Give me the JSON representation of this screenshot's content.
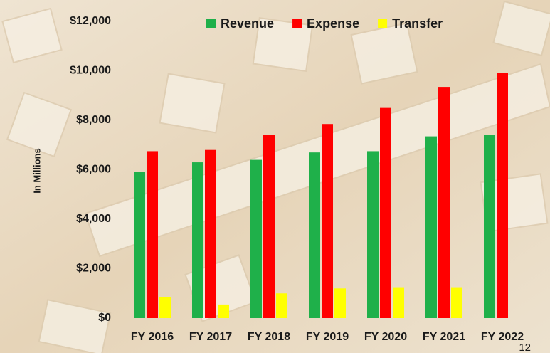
{
  "chart_data": {
    "type": "bar",
    "y_label": "In Millions",
    "categories": [
      "FY 2016",
      "FY 2017",
      "FY 2018",
      "FY 2019",
      "FY 2020",
      "FY 2021",
      "FY 2022"
    ],
    "series": [
      {
        "name": "Revenue",
        "color": "#1fb04a",
        "values": [
          5900,
          6300,
          6400,
          6700,
          6750,
          7350,
          7400
        ]
      },
      {
        "name": "Expense",
        "color": "#ff0000",
        "values": [
          6750,
          6800,
          7400,
          7850,
          8500,
          9350,
          9900
        ]
      },
      {
        "name": "Transfer",
        "color": "#ffff00",
        "values": [
          850,
          550,
          1000,
          1200,
          1250,
          1250,
          null
        ]
      }
    ],
    "ylim": [
      0,
      12000
    ],
    "yticks": [
      {
        "value": 0,
        "label": "$0"
      },
      {
        "value": 2000,
        "label": "$2,000"
      },
      {
        "value": 4000,
        "label": "$4,000"
      },
      {
        "value": 6000,
        "label": "$6,000"
      },
      {
        "value": 8000,
        "label": "$8,000"
      },
      {
        "value": 10000,
        "label": "$10,000"
      },
      {
        "value": 12000,
        "label": "$12,000"
      }
    ],
    "grid": false,
    "legend": "top"
  },
  "page_number": "12"
}
